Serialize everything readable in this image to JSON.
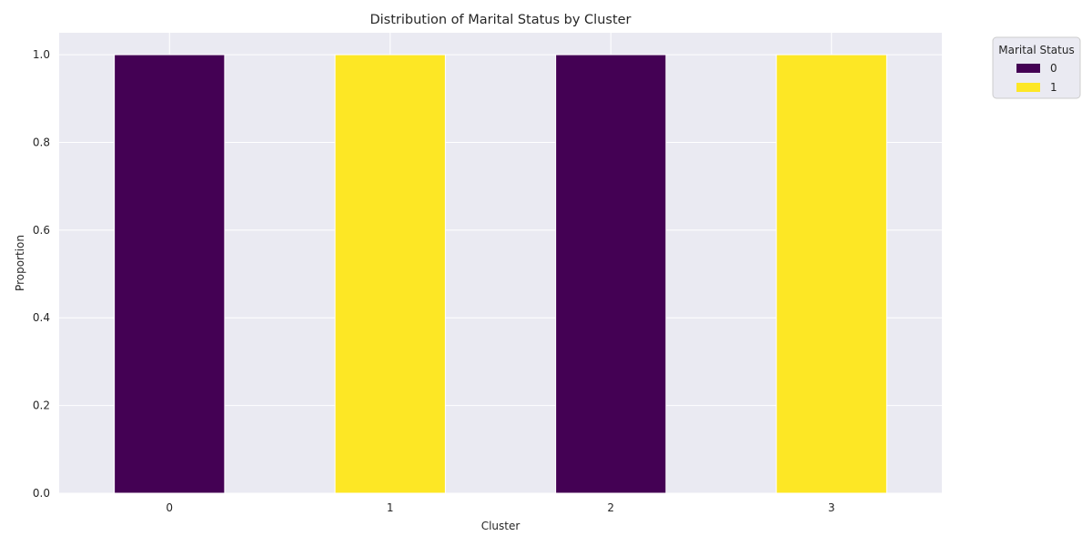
{
  "chart_data": {
    "type": "bar",
    "stacked": true,
    "title": "Distribution of Marital Status by Cluster",
    "xlabel": "Cluster",
    "ylabel": "Proportion",
    "categories": [
      "0",
      "1",
      "2",
      "3"
    ],
    "series": [
      {
        "name": "0",
        "color": "#440154",
        "values": [
          1.0,
          0.0,
          1.0,
          0.0
        ]
      },
      {
        "name": "1",
        "color": "#fde725",
        "values": [
          0.0,
          1.0,
          0.0,
          1.0
        ]
      }
    ],
    "ylim": [
      0,
      1.05
    ],
    "yticks": [
      0.0,
      0.2,
      0.4,
      0.6,
      0.8,
      1.0
    ],
    "ytick_labels": [
      "0.0",
      "0.2",
      "0.4",
      "0.6",
      "0.8",
      "1.0"
    ],
    "grid": true,
    "legend": {
      "title": "Marital Status",
      "position": "outside-top-right"
    },
    "background_color": "#eaeaf2"
  }
}
